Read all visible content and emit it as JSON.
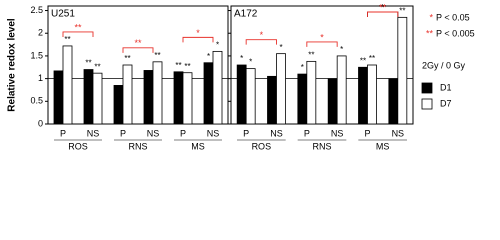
{
  "y_label": "Relative redox level",
  "significance": [
    {
      "symbol": "*",
      "text": "P < 0.05"
    },
    {
      "symbol": "**",
      "text": "P < 0.005"
    }
  ],
  "legend_title": "2Gy / 0 Gy",
  "chart_data": [
    {
      "type": "bar",
      "title": "U251",
      "categories": [
        "P",
        "NS",
        "P",
        "NS",
        "P",
        "NS"
      ],
      "groups": [
        "ROS",
        "RNS",
        "MS"
      ],
      "series": [
        {
          "name": "D1",
          "color": "#000000",
          "values": [
            1.17,
            1.2,
            0.85,
            1.18,
            1.15,
            1.35
          ],
          "stars": [
            null,
            "**",
            null,
            null,
            "**",
            "*"
          ]
        },
        {
          "name": "D7",
          "color": "#ffffff",
          "values": [
            1.72,
            1.12,
            1.3,
            1.37,
            1.13,
            1.6
          ],
          "stars": [
            "**",
            "**",
            "**",
            "**",
            "**",
            "*"
          ]
        }
      ],
      "brackets": [
        {
          "from": 0,
          "to": 1,
          "label": "**",
          "color": "#e8302a"
        },
        {
          "from": 2,
          "to": 3,
          "label": "**",
          "color": "#e8302a"
        },
        {
          "from": 4,
          "to": 5,
          "label": "*",
          "color": "#e8302a"
        }
      ],
      "ref_line": 1,
      "ylim": [
        0,
        2.6
      ],
      "yticks": [
        0,
        0.5,
        1,
        1.5,
        2,
        2.5
      ]
    },
    {
      "type": "bar",
      "title": "A172",
      "categories": [
        "P",
        "NS",
        "P",
        "NS",
        "P",
        "NS"
      ],
      "groups": [
        "ROS",
        "RNS",
        "MS"
      ],
      "series": [
        {
          "color": "#000000",
          "values": [
            1.3,
            1.05,
            1.1,
            1.0,
            1.25,
            1.0
          ],
          "stars": [
            "*",
            null,
            "*",
            null,
            "**",
            null
          ]
        },
        {
          "color": "#ffffff",
          "values": [
            1.22,
            1.55,
            1.38,
            1.5,
            1.3,
            2.35
          ],
          "stars": [
            "*",
            "*",
            "**",
            "*",
            "**",
            "**"
          ]
        }
      ],
      "brackets": [
        {
          "from": 0,
          "to": 1,
          "label": "*",
          "color": "#e8302a"
        },
        {
          "from": 2,
          "to": 3,
          "label": "*",
          "color": "#e8302a"
        },
        {
          "from": 4,
          "to": 5,
          "label": "*",
          "color": "#000000"
        },
        {
          "from": 4,
          "to": 5,
          "label": "**",
          "color": "#e8302a"
        }
      ],
      "ref_line": 1,
      "ylim": [
        0,
        2.6
      ],
      "yticks": [
        0,
        0.5,
        1,
        1.5,
        2,
        2.5
      ]
    }
  ]
}
